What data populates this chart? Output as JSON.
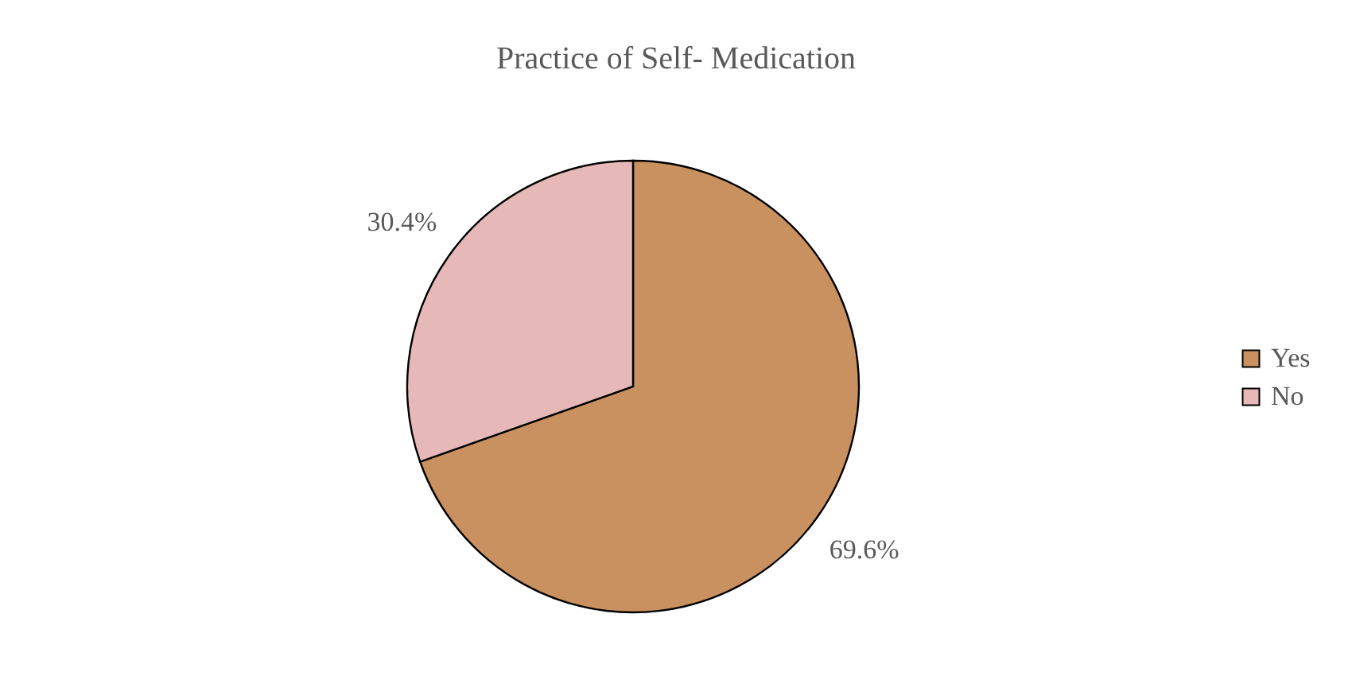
{
  "chart_data": {
    "type": "pie",
    "title": "Practice of Self- Medication",
    "categories": [
      "Yes",
      "No"
    ],
    "values": [
      69.6,
      30.4
    ],
    "colors": [
      "#c8915f",
      "#e6b9b8"
    ],
    "value_labels": [
      "69.6%",
      "30.4%"
    ],
    "legend": "right"
  }
}
